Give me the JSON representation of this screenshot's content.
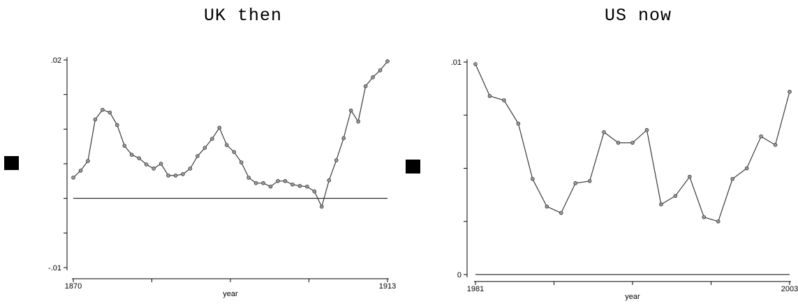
{
  "chart_data": [
    {
      "type": "line",
      "title": "UK then",
      "xlabel": "year",
      "ylabel": "",
      "xlim": [
        1870,
        1913
      ],
      "ylim": [
        -0.01,
        0.02
      ],
      "y_tick_labels": [
        ".02",
        "-.01"
      ],
      "x_tick_labels": [
        "1870",
        "1913"
      ],
      "reference_line": 0,
      "series": [
        {
          "x": [
            1870,
            1871,
            1872,
            1873,
            1874,
            1875,
            1876,
            1877,
            1878,
            1879,
            1880,
            1881,
            1882,
            1883,
            1884,
            1885,
            1886,
            1887,
            1888,
            1889,
            1890,
            1891,
            1892,
            1893,
            1894,
            1895,
            1896,
            1897,
            1898,
            1899,
            1900,
            1901,
            1902,
            1903,
            1904,
            1905,
            1906,
            1907,
            1908,
            1909,
            1910,
            1911,
            1912,
            1913
          ],
          "values": [
            0.003,
            0.004,
            0.0054,
            0.0114,
            0.0128,
            0.0124,
            0.0106,
            0.0076,
            0.0063,
            0.0058,
            0.0049,
            0.0043,
            0.005,
            0.0033,
            0.0033,
            0.0035,
            0.0043,
            0.0061,
            0.0073,
            0.0086,
            0.0102,
            0.0077,
            0.0067,
            0.0052,
            0.003,
            0.0022,
            0.0022,
            0.0017,
            0.0025,
            0.0025,
            0.002,
            0.0018,
            0.0017,
            0.001,
            -0.0012,
            0.0026,
            0.0055,
            0.0087,
            0.0127,
            0.0111,
            0.0162,
            0.0175,
            0.0185,
            0.0198
          ]
        }
      ]
    },
    {
      "type": "line",
      "title": "US now",
      "xlabel": "year",
      "ylabel": "",
      "xlim": [
        1981,
        2003
      ],
      "ylim": [
        0,
        0.01
      ],
      "y_tick_labels": [
        ".01",
        "0"
      ],
      "x_tick_labels": [
        "1981",
        "2003"
      ],
      "reference_line": 0,
      "series": [
        {
          "x": [
            1981,
            1982,
            1983,
            1984,
            1985,
            1986,
            1987,
            1988,
            1989,
            1990,
            1991,
            1992,
            1993,
            1994,
            1995,
            1996,
            1997,
            1998,
            1999,
            2000,
            2001,
            2002,
            2003
          ],
          "values": [
            0.0099,
            0.0084,
            0.0082,
            0.0071,
            0.0045,
            0.0032,
            0.0029,
            0.0043,
            0.0044,
            0.0067,
            0.0062,
            0.0062,
            0.0068,
            0.0033,
            0.0037,
            0.0046,
            0.0027,
            0.0025,
            0.0045,
            0.005,
            0.0065,
            0.0061,
            0.0086
          ]
        }
      ]
    }
  ]
}
